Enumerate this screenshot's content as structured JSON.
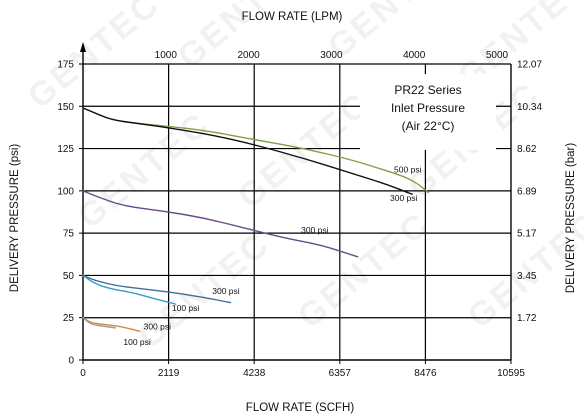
{
  "chart_data": {
    "type": "line",
    "title": "",
    "top_axis": {
      "label": "FLOW RATE (LPM)",
      "ticks": [
        {
          "value": 1000,
          "label": "1000"
        },
        {
          "value": 2000,
          "label": "2000"
        },
        {
          "value": 3000,
          "label": "3000"
        },
        {
          "value": 4000,
          "label": "4000"
        },
        {
          "value": 5000,
          "label": "5000"
        }
      ]
    },
    "x_axis": {
      "label": "FLOW RATE (SCFH)",
      "range": [
        0,
        10595
      ],
      "ticks": [
        {
          "value": 0,
          "label": "0"
        },
        {
          "value": 2119,
          "label": "2119"
        },
        {
          "value": 4238,
          "label": "4238"
        },
        {
          "value": 6357,
          "label": "6357"
        },
        {
          "value": 8476,
          "label": "8476"
        },
        {
          "value": 10595,
          "label": "10595"
        }
      ]
    },
    "y_axis": {
      "label": "DELIVERY PRESSURE (psi)",
      "range": [
        0,
        175
      ],
      "ticks": [
        {
          "value": 0,
          "label": "0"
        },
        {
          "value": 25,
          "label": "25"
        },
        {
          "value": 50,
          "label": "50"
        },
        {
          "value": 75,
          "label": "75"
        },
        {
          "value": 100,
          "label": "100"
        },
        {
          "value": 125,
          "label": "125"
        },
        {
          "value": 150,
          "label": "150"
        },
        {
          "value": 175,
          "label": "175"
        }
      ]
    },
    "y2_axis": {
      "label": "DELIVERY PRESSURE (bar)",
      "ticks": [
        {
          "value": 25,
          "label": "1.72"
        },
        {
          "value": 50,
          "label": "3.45"
        },
        {
          "value": 75,
          "label": "5.17"
        },
        {
          "value": 100,
          "label": "6.89"
        },
        {
          "value": 125,
          "label": "8.62"
        },
        {
          "value": 150,
          "label": "10.34"
        },
        {
          "value": 175,
          "label": "12.07"
        }
      ]
    },
    "info_box": {
      "lines": [
        "PR22 Series",
        "Inlet Pressure",
        "(Air 22°C)"
      ]
    },
    "series": [
      {
        "name": "500 psi",
        "color": "#7fa04a",
        "x": [
          0,
          300,
          700,
          1300,
          2200,
          3200,
          4300,
          5500,
          6700,
          7500,
          8000,
          8300,
          8550
        ],
        "y": [
          149,
          146,
          142,
          140,
          138,
          135,
          130,
          125,
          118,
          112,
          108,
          104,
          99
        ],
        "label_at": [
          7700,
          111
        ]
      },
      {
        "name": "300 psi",
        "color": "#111111",
        "x": [
          0,
          300,
          700,
          1300,
          2200,
          3200,
          4300,
          5500,
          6700,
          7500,
          8150
        ],
        "y": [
          149,
          146,
          142,
          140,
          137,
          133,
          127,
          119,
          110,
          104,
          98
        ],
        "label_at": [
          7600,
          94
        ]
      },
      {
        "name": "300 psi",
        "color": "#6a4b8c",
        "x": [
          0,
          300,
          1000,
          2000,
          3000,
          4000,
          5000,
          5900,
          6800
        ],
        "y": [
          100,
          97,
          91,
          88,
          84,
          78,
          72,
          68,
          61
        ],
        "label_at": [
          5400,
          75
        ]
      },
      {
        "name": "300 psi",
        "color": "#3e6f9e",
        "x": [
          0,
          300,
          800,
          1500,
          2200,
          3000,
          3650
        ],
        "y": [
          50,
          47,
          44,
          42,
          40,
          37,
          34
        ],
        "label_at": [
          3200,
          39
        ]
      },
      {
        "name": "100 psi",
        "color": "#3a9cc0",
        "x": [
          0,
          300,
          700,
          1200,
          1800,
          2300
        ],
        "y": [
          50,
          45,
          42,
          40,
          36,
          33
        ],
        "label_at": [
          2200,
          29
        ]
      },
      {
        "name": "300 psi",
        "color": "#d0893a",
        "x": [
          0,
          200,
          500,
          900,
          1400
        ],
        "y": [
          25,
          22,
          21,
          20,
          17
        ],
        "label_at": [
          1500,
          18
        ]
      },
      {
        "name": "100 psi",
        "color": "#9a9a9a",
        "x": [
          0,
          200,
          500,
          800
        ],
        "y": [
          25,
          21,
          20,
          19
        ],
        "label_at": [
          1000,
          9
        ]
      }
    ],
    "grid": true,
    "legend": "none",
    "watermark": "GENTEC"
  }
}
